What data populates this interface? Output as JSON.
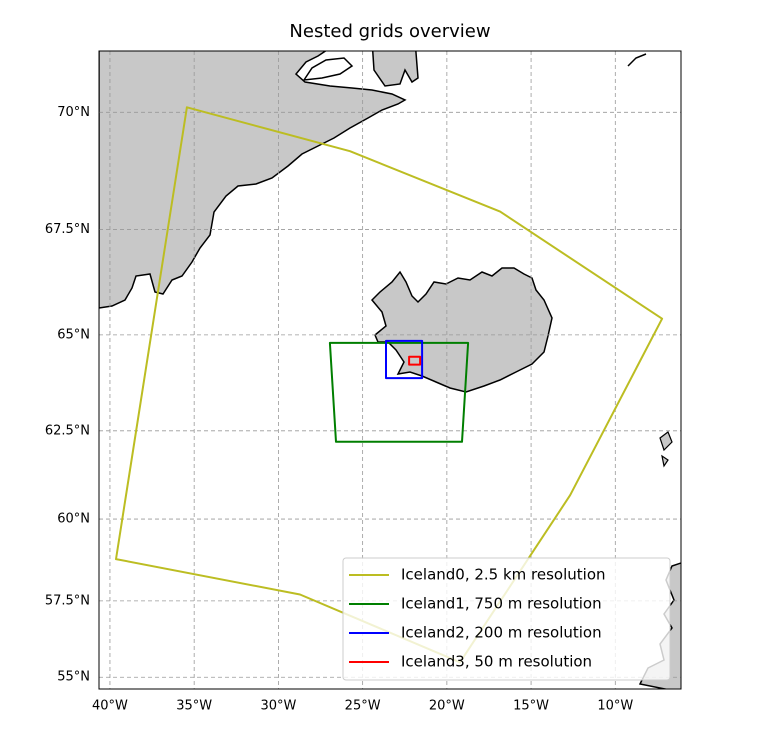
{
  "chart_data": {
    "type": "map",
    "title": "Nested grids overview",
    "projection": "mercator",
    "xlim": [
      -40.65,
      -6.1
    ],
    "ylim": [
      54.6,
      71.2
    ],
    "grid": true,
    "legend": "lower right",
    "xticks": [
      {
        "value": -40,
        "label": "40°W"
      },
      {
        "value": -35,
        "label": "35°W"
      },
      {
        "value": -30,
        "label": "30°W"
      },
      {
        "value": -25,
        "label": "25°W"
      },
      {
        "value": -20,
        "label": "20°W"
      },
      {
        "value": -15,
        "label": "15°W"
      },
      {
        "value": -10,
        "label": "10°W"
      }
    ],
    "yticks": [
      {
        "value": 55,
        "label": "55°N"
      },
      {
        "value": 57.5,
        "label": "57.5°N"
      },
      {
        "value": 60,
        "label": "60°N"
      },
      {
        "value": 62.5,
        "label": "62.5°N"
      },
      {
        "value": 65,
        "label": "65°N"
      },
      {
        "value": 67.5,
        "label": "67.5°N"
      },
      {
        "value": 70,
        "label": "70°N"
      }
    ],
    "series": [
      {
        "name": "Iceland0, 2.5 km resolution",
        "color": "#bcbd22",
        "x": [
          -35.43,
          -25.75,
          -16.84,
          -7.22,
          -12.68,
          -19.22,
          -28.72,
          -39.64
        ],
        "values": [
          70.1,
          69.2,
          67.9,
          65.4,
          60.7,
          55.5,
          57.7,
          58.8
        ]
      },
      {
        "name": "Iceland1, 750 m resolution",
        "color": "#007f00",
        "x": [
          -26.94,
          -18.74,
          -19.1,
          -26.58
        ],
        "values": [
          64.8,
          64.8,
          62.2,
          62.2
        ]
      },
      {
        "name": "Iceland2, 200 m resolution",
        "color": "#0000ff",
        "x": [
          -23.61,
          -21.47,
          -21.47,
          -23.61
        ],
        "values": [
          64.85,
          64.85,
          63.9,
          63.9
        ]
      },
      {
        "name": "Iceland3, 50 m resolution",
        "color": "#ff0000",
        "x": [
          -22.24,
          -21.59,
          -21.59,
          -22.24
        ],
        "values": [
          64.45,
          64.45,
          64.25,
          64.25
        ]
      }
    ]
  }
}
